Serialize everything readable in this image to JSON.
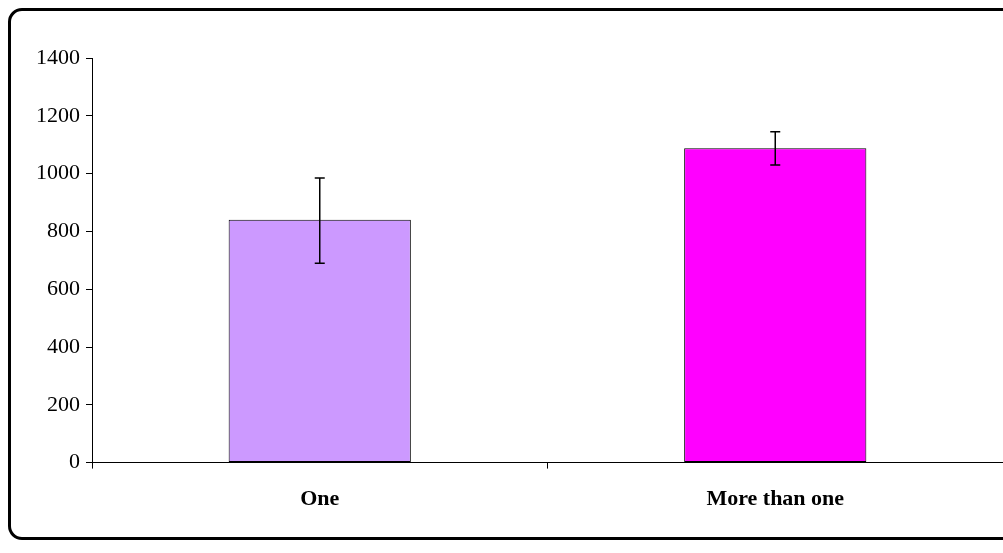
{
  "chart_data": {
    "type": "bar",
    "categories": [
      "One",
      "More than one"
    ],
    "series": [
      {
        "values": [
          840,
          1088
        ],
        "colors": [
          "#cc99ff",
          "#ff00ff"
        ],
        "errors": [
          [
            690,
            985
          ],
          [
            1030,
            1145
          ]
        ]
      }
    ],
    "ylim": [
      0,
      1400
    ],
    "yticks": [
      0,
      200,
      400,
      600,
      800,
      1000,
      1200,
      1400
    ],
    "grid": false,
    "legend": false
  }
}
